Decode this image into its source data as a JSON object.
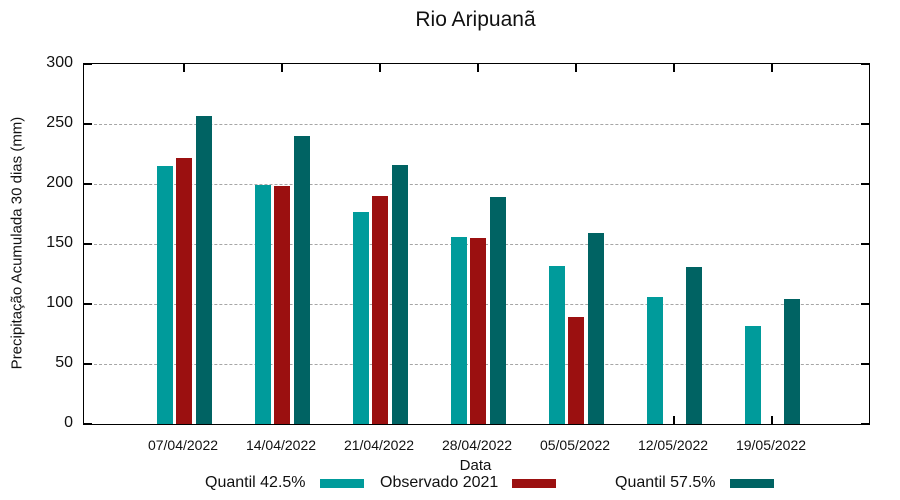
{
  "title": "Rio Aripuanã",
  "chart_data": {
    "type": "bar",
    "title": "Rio Aripuanã",
    "xlabel": "Data",
    "ylabel": "Precipitação Acumulada 30 dias (mm)",
    "ylim": [
      0,
      300
    ],
    "yticks": [
      0,
      50,
      100,
      150,
      200,
      250,
      300
    ],
    "grid": "horizontal dashed gridlines at 50..250, tick marks mirrored on all four borders",
    "legend_position": "bottom",
    "categories": [
      "07/04/2022",
      "14/04/2022",
      "21/04/2022",
      "28/04/2022",
      "05/05/2022",
      "12/05/2022",
      "19/05/2022"
    ],
    "series": [
      {
        "name": "Quantil 42.5%",
        "color": "#009b9b",
        "values": [
          215,
          199,
          177,
          156,
          132,
          106,
          82
        ]
      },
      {
        "name": "Observado 2021",
        "color": "#9b1010",
        "values": [
          222,
          198,
          190,
          155,
          89,
          null,
          null
        ]
      },
      {
        "name": "Quantil 57.5%",
        "color": "#006363",
        "values": [
          257,
          240,
          216,
          189,
          159,
          131,
          104
        ]
      }
    ],
    "colors": {
      "border": "#000000",
      "grid": "#a6a6a6",
      "text": "#111111",
      "background": "#ffffff"
    }
  }
}
